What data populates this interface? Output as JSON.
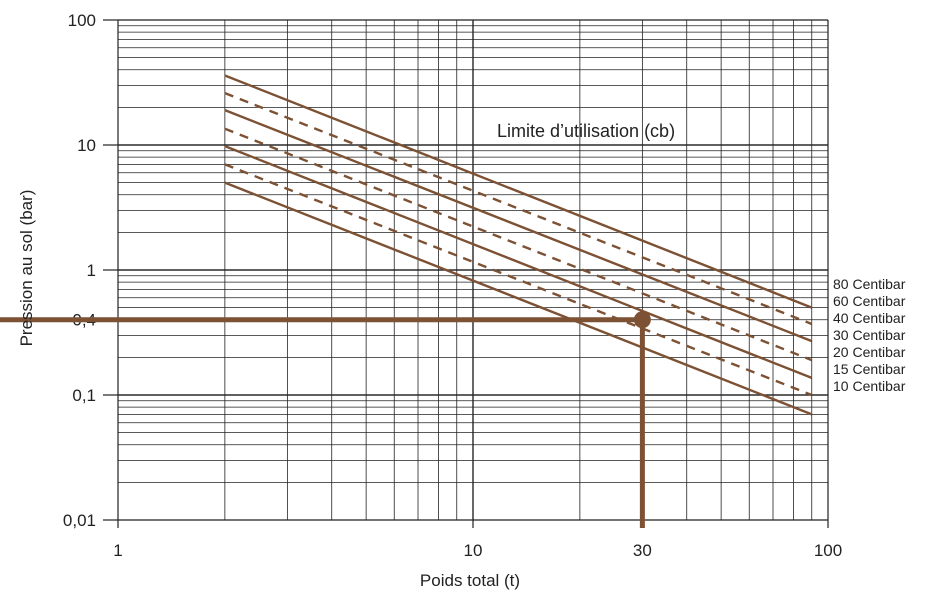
{
  "chart_data": {
    "type": "line",
    "title": "",
    "annotation": "Limite d’utilisation (cb)",
    "xlabel": "Poids total (t)",
    "ylabel": "Pression au sol (bar)",
    "x_scale": "log",
    "y_scale": "log",
    "xlim": [
      1,
      100
    ],
    "ylim": [
      0.01,
      100
    ],
    "grid": true,
    "x_ticks": [
      {
        "value": 1,
        "label": "1"
      },
      {
        "value": 10,
        "label": "10"
      },
      {
        "value": 30,
        "label": "30"
      },
      {
        "value": 100,
        "label": "100"
      }
    ],
    "y_ticks": [
      {
        "value": 100,
        "label": "100"
      },
      {
        "value": 10,
        "label": "10"
      },
      {
        "value": 1,
        "label": "1"
      },
      {
        "value": 0.4,
        "label": "0,4"
      },
      {
        "value": 0.1,
        "label": "0,1"
      },
      {
        "value": 0.01,
        "label": "0,01"
      }
    ],
    "series": [
      {
        "name": "80 Centibar",
        "style": "solid",
        "x": [
          2,
          90
        ],
        "y": [
          36,
          0.5
        ]
      },
      {
        "name": "60 Centibar",
        "style": "dashed",
        "x": [
          2,
          90
        ],
        "y": [
          26,
          0.37
        ]
      },
      {
        "name": "40 Centibar",
        "style": "solid",
        "x": [
          2,
          90
        ],
        "y": [
          19,
          0.27
        ]
      },
      {
        "name": "30 Centibar",
        "style": "dashed",
        "x": [
          2,
          90
        ],
        "y": [
          13.5,
          0.19
        ]
      },
      {
        "name": "20 Centibar",
        "style": "solid",
        "x": [
          2,
          90
        ],
        "y": [
          9.8,
          0.137
        ]
      },
      {
        "name": "15 Centibar",
        "style": "dashed",
        "x": [
          2,
          90
        ],
        "y": [
          7,
          0.1
        ]
      },
      {
        "name": "10 Centibar",
        "style": "solid",
        "x": [
          2,
          90
        ],
        "y": [
          5,
          0.07
        ]
      }
    ],
    "example_point": {
      "x": 30,
      "y": 0.4
    },
    "colors": {
      "line": "#7d5133",
      "grid": "#222222",
      "text": "#222222"
    }
  }
}
